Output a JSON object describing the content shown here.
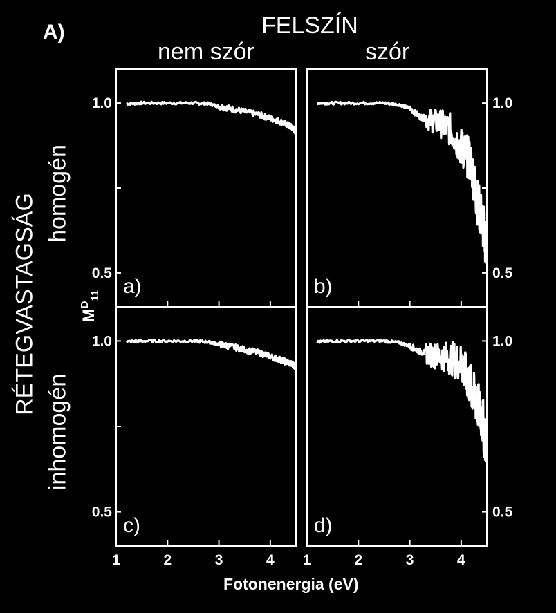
{
  "header": {
    "panel_tag": "A)",
    "top_title": "FELSZÍN",
    "col_left": "nem szór",
    "col_right": "szór",
    "row_group": "RÉTEGVASTAGSÁG",
    "row_top": "homogén",
    "row_bottom": "inhomogén",
    "ylabel_main": "M",
    "ylabel_sup": "D",
    "ylabel_sub": "11"
  },
  "colors": {
    "background": "#000000",
    "foreground": "#ffffff"
  },
  "chart_data": {
    "type": "line",
    "xlabel": "Fotonenergia (eV)",
    "xlim": [
      1,
      4.5
    ],
    "ylim": [
      0.4,
      1.1
    ],
    "xticks": [
      1,
      2,
      3,
      4
    ],
    "yticks_labeled": [
      0.5,
      1.0
    ],
    "ytick_labels": [
      "0.5",
      "1.0"
    ],
    "grid": false,
    "panels": [
      {
        "label": "a)",
        "row": 0,
        "col": 0,
        "points": [
          [
            1.2,
            0.998
          ],
          [
            1.5,
            1.0
          ],
          [
            2.0,
            1.0
          ],
          [
            2.5,
            1.0
          ],
          [
            2.8,
            0.998
          ],
          [
            3.0,
            0.99
          ],
          [
            3.2,
            0.985
          ],
          [
            3.5,
            0.975
          ],
          [
            3.8,
            0.965
          ],
          [
            4.0,
            0.955
          ],
          [
            4.2,
            0.945
          ],
          [
            4.35,
            0.935
          ],
          [
            4.45,
            0.925
          ],
          [
            4.5,
            0.915
          ]
        ]
      },
      {
        "label": "b)",
        "row": 0,
        "col": 1,
        "points": [
          [
            1.2,
            1.0
          ],
          [
            1.5,
            1.0
          ],
          [
            2.0,
            1.0
          ],
          [
            2.5,
            1.0
          ],
          [
            2.8,
            0.995
          ],
          [
            3.0,
            0.985
          ],
          [
            3.2,
            0.96
          ],
          [
            3.4,
            0.95
          ],
          [
            3.6,
            0.94
          ],
          [
            3.8,
            0.92
          ],
          [
            4.0,
            0.87
          ],
          [
            4.1,
            0.85
          ],
          [
            4.2,
            0.82
          ],
          [
            4.3,
            0.72
          ],
          [
            4.4,
            0.66
          ],
          [
            4.5,
            0.58
          ]
        ]
      },
      {
        "label": "c)",
        "row": 1,
        "col": 0,
        "points": [
          [
            1.2,
            0.998
          ],
          [
            1.5,
            1.0
          ],
          [
            2.0,
            1.0
          ],
          [
            2.5,
            1.0
          ],
          [
            2.8,
            0.997
          ],
          [
            3.0,
            0.99
          ],
          [
            3.2,
            0.985
          ],
          [
            3.5,
            0.975
          ],
          [
            3.8,
            0.965
          ],
          [
            4.0,
            0.955
          ],
          [
            4.2,
            0.945
          ],
          [
            4.35,
            0.937
          ],
          [
            4.45,
            0.93
          ],
          [
            4.5,
            0.925
          ]
        ]
      },
      {
        "label": "d)",
        "row": 1,
        "col": 1,
        "points": [
          [
            1.2,
            0.997
          ],
          [
            1.5,
            1.0
          ],
          [
            2.0,
            1.0
          ],
          [
            2.5,
            1.0
          ],
          [
            2.8,
            0.995
          ],
          [
            3.0,
            0.985
          ],
          [
            3.2,
            0.97
          ],
          [
            3.4,
            0.96
          ],
          [
            3.6,
            0.955
          ],
          [
            3.8,
            0.95
          ],
          [
            4.0,
            0.935
          ],
          [
            4.1,
            0.9
          ],
          [
            4.2,
            0.86
          ],
          [
            4.3,
            0.82
          ],
          [
            4.4,
            0.78
          ],
          [
            4.5,
            0.69
          ]
        ]
      }
    ]
  }
}
